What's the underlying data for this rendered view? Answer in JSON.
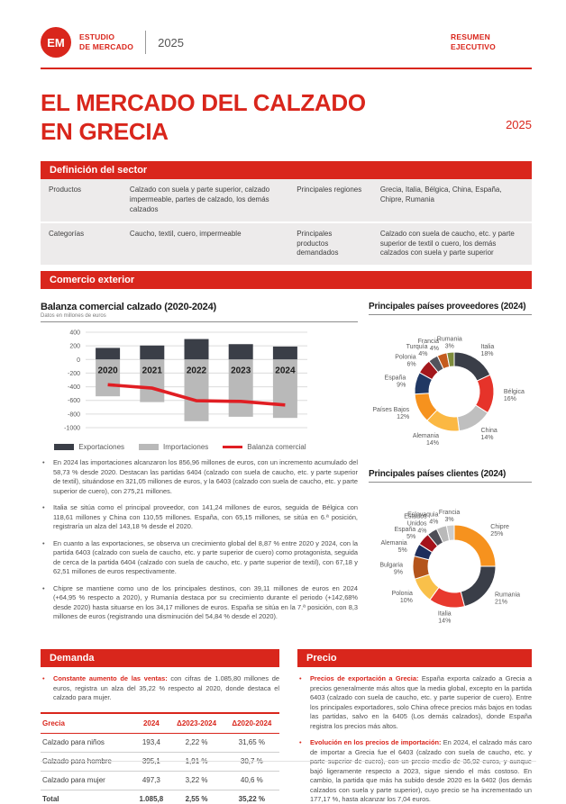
{
  "colors": {
    "primary_red": "#D9261C",
    "navy": "#3A3E47",
    "gray_bar": "#B9B9B9",
    "line_red": "#E01E23"
  },
  "header": {
    "logo": "EM",
    "brand_line1": "ESTUDIO",
    "brand_line2": "DE MERCADO",
    "year": "2025",
    "right_line1": "RESUMEN",
    "right_line2": "EJECUTIVO"
  },
  "title": {
    "line1": "EL MERCADO DEL CALZADO",
    "line2": "EN GRECIA",
    "year": "2025"
  },
  "sections": {
    "definition": "Definición del sector",
    "trade": "Comercio exterior",
    "demand": "Demanda",
    "price": "Precio"
  },
  "definition_table": {
    "rows": [
      [
        "Productos",
        "Calzado con suela y parte superior, calzado impermeable, partes de calzado, los demás calzados",
        "Principales regiones",
        "Grecia, Italia, Bélgica, China, España, Chipre, Rumania"
      ],
      [
        "Categorías",
        "Caucho, textil, cuero, impermeable",
        "Principales productos demandados",
        "Calzado con suela de caucho, etc. y parte superior de textil o cuero, los demás calzados con suela y parte superior"
      ]
    ]
  },
  "trade": {
    "bullets": [
      "En 2024 las importaciones alcanzaron los 856,96 millones de euros, con un incremento acumulado del 58,73 % desde 2020. Destacan las partidas 6404 (calzado con suela de caucho, etc. y parte superior de textil), situándose en 321,05 millones de euros, y la 6403 (calzado con suela de caucho, etc. y parte superior de cuero), con 275,21 millones.",
      "Italia se sitúa como el principal proveedor, con 141,24 millones de euros, seguida de Bélgica con 118,61 millones y China con 110,55 millones. España, con 65,15 millones, se sitúa en 6.ª posición, registraría un alza del 143,18 % desde el 2020.",
      "En cuanto a las exportaciones, se observa un crecimiento global del 8,87 % entre 2020 y 2024, con la partida 6403 (calzado con suela de caucho, etc. y parte superior de cuero) como protagonista, seguida de cerca de la partida 6404 (calzado con suela de caucho, etc. y parte superior de textil), con 67,18 y 62,51 millones de euros respectivamente.",
      "Chipre se mantiene como uno de los principales destinos, con 39,11 millones de euros en 2024 (+64,95 % respecto a 2020), y Rumanía destaca por su crecimiento durante el periodo (+142,68% desde 2020) hasta situarse en los 34,17 millones de euros. España se sitúa en la 7.ª posición, con 8,3 millones de euros (registrando una disminución del 54,84 % desde el 2020)."
    ]
  },
  "chart_data": [
    {
      "type": "bar",
      "title": "Balanza comercial calzado (2020-2024)",
      "subtitle": "Datos en millones de euros",
      "categories": [
        "2020",
        "2021",
        "2022",
        "2023",
        "2024"
      ],
      "series": [
        {
          "name": "Exportaciones",
          "type": "bar",
          "color": "#3A3E47",
          "values": [
            170,
            205,
            300,
            225,
            190
          ]
        },
        {
          "name": "Importaciones",
          "type": "bar",
          "color": "#B9B9B9",
          "values": [
            -540,
            -625,
            -905,
            -840,
            -857
          ]
        },
        {
          "name": "Balanza comercial",
          "type": "line",
          "color": "#E01E23",
          "values": [
            -370,
            -420,
            -605,
            -615,
            -667
          ]
        }
      ],
      "ylim": [
        -1000,
        400
      ],
      "yticks": [
        400,
        200,
        0,
        -200,
        -400,
        -600,
        -800,
        -1000
      ],
      "grid": true,
      "legend_position": "bottom"
    },
    {
      "type": "pie",
      "title": "Principales países proveedores (2024)",
      "items": [
        {
          "label": "Italia",
          "value": 18,
          "pct": "18%",
          "color": "#3A3E48"
        },
        {
          "label": "Bélgica",
          "value": 16,
          "pct": "16%",
          "color": "#E6332A"
        },
        {
          "label": "China",
          "value": 14,
          "pct": "14%",
          "color": "#BFBFBF"
        },
        {
          "label": "Alemania",
          "value": 14,
          "pct": "14%",
          "color": "#FBB843"
        },
        {
          "label": "Países Bajos",
          "value": 12,
          "pct": "12%",
          "color": "#F6921E"
        },
        {
          "label": "España",
          "value": 9,
          "pct": "9%",
          "color": "#203864"
        },
        {
          "label": "Polonia",
          "value": 6,
          "pct": "6%",
          "color": "#A3171C"
        },
        {
          "label": "Turquía",
          "value": 4,
          "pct": "4%",
          "color": "#53535C"
        },
        {
          "label": "Francia",
          "value": 4,
          "pct": "4%",
          "color": "#C45B1E"
        },
        {
          "label": "Rumania",
          "value": 3,
          "pct": "3%",
          "color": "#7E8C3C"
        }
      ]
    },
    {
      "type": "pie",
      "title": "Principales países clientes (2024)",
      "items": [
        {
          "label": "Chipre",
          "value": 25,
          "pct": "25%",
          "color": "#F6921E"
        },
        {
          "label": "Rumania",
          "value": 21,
          "pct": "21%",
          "color": "#3A3E48"
        },
        {
          "label": "Italia",
          "value": 14,
          "pct": "14%",
          "color": "#E8392E"
        },
        {
          "label": "Polonia",
          "value": 10,
          "pct": "10%",
          "color": "#F9C04A"
        },
        {
          "label": "Bulgaria",
          "value": 9,
          "pct": "9%",
          "color": "#B4541B"
        },
        {
          "label": "Alemania",
          "value": 5,
          "pct": "5%",
          "color": "#1E2E5C"
        },
        {
          "label": "España",
          "value": 5,
          "pct": "5%",
          "color": "#A5121A"
        },
        {
          "label": "Estados Unidos",
          "value": 4,
          "pct": "4%",
          "color": "#4E4E57",
          "label_lines": [
            "Estados",
            "Unidos"
          ]
        },
        {
          "label": "Eslovaquia",
          "value": 4,
          "pct": "4%",
          "color": "#B9B9B9"
        },
        {
          "label": "Francia",
          "value": 3,
          "pct": "3%",
          "color": "#CDCDCD"
        }
      ]
    }
  ],
  "demand": {
    "bullet": {
      "lead": "Constante aumento de las ventas:",
      "text": " con cifras de 1.085,80 millones de euros, registra un alza del 35,22 % respecto al 2020, donde destaca el calzado para mujer."
    },
    "table": {
      "columns": [
        "Grecia",
        "2024",
        "Δ2023-2024",
        "Δ2020-2024"
      ],
      "rows": [
        [
          "Calzado para niños",
          "193,4",
          "2,22 %",
          "31,65 %"
        ],
        [
          "Calzado para hombre",
          "395,1",
          "1,91 %",
          "30,7 %"
        ],
        [
          "Calzado para mujer",
          "497,3",
          "3,22 %",
          "40,6 %"
        ],
        [
          "Total",
          "1.085,8",
          "2,55 %",
          "35,22 %"
        ]
      ]
    }
  },
  "price": {
    "bullets": [
      {
        "lead": "Precios de exportación a Grecia:",
        "text": " España exporta calzado a Grecia a precios generalmente más altos que la media global, excepto en la partida 6403 (calzado con suela de caucho, etc. y parte superior de cuero). Entre los principales exportadores, solo China ofrece precios más bajos en todas las partidas, salvo en la 6405 (Los demás calzados), donde España registra los precios más altos."
      },
      {
        "lead": "Evolución en los precios de importación:",
        "text": " En 2024, el calzado más caro de importar a Grecia fue el 6403 (calzado con suela de caucho, etc. y parte superior de cuero), con un precio medio de 36,92 euros, y aunque bajó ligeramente respecto a 2023, sigue siendo el más costoso. En cambio, la partida que más ha subido desde 2020 es la 6402 (los demás calzados con suela y parte superior), cuyo precio se ha incrementado un 177,17 %, hasta alcanzar los 7,04 euros."
      }
    ]
  }
}
